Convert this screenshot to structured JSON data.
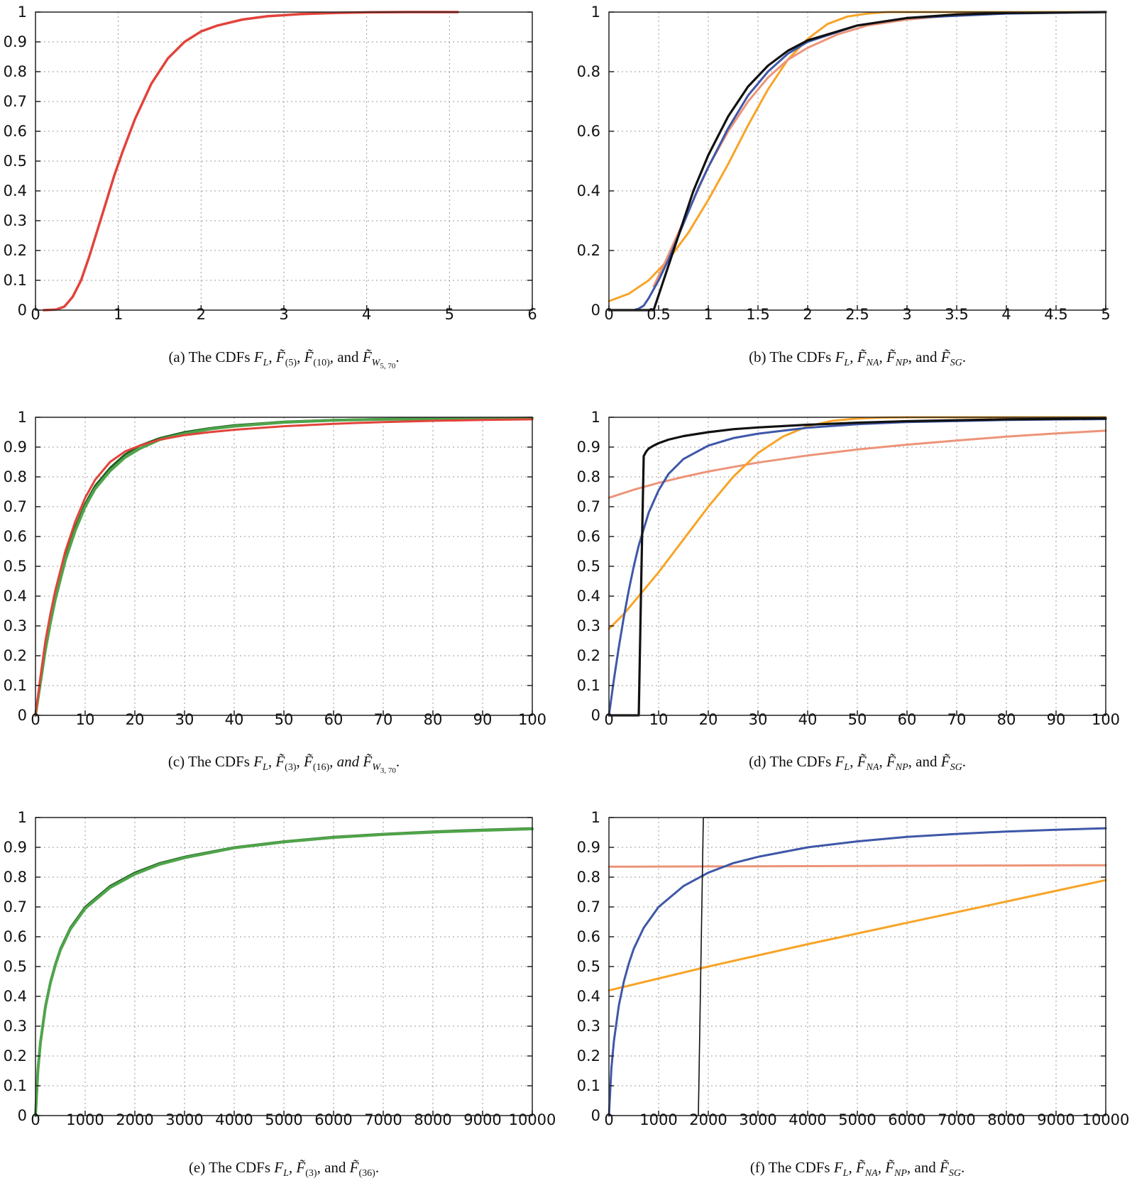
{
  "colors": {
    "red": "#e2433a",
    "blue": "#3e57a8",
    "orange": "#f7a428",
    "salmon": "#ec9479",
    "black": "#111111",
    "green": "#4fa44a",
    "dark_green": "#1f5d20"
  },
  "chart_data": [
    {
      "id": "a",
      "type": "line",
      "xlim": [
        0,
        6
      ],
      "ylim": [
        0,
        1
      ],
      "xticks": [
        "0",
        "1",
        "2",
        "3",
        "4",
        "5",
        "6"
      ],
      "yticks": [
        "0",
        "0.1",
        "0.2",
        "0.3",
        "0.4",
        "0.5",
        "0.6",
        "0.7",
        "0.8",
        "0.9",
        "1"
      ],
      "grid": true,
      "caption": {
        "lead": "(a) The CDFs",
        "tail": ", and"
      },
      "series": [
        {
          "color_key": "red",
          "width": 3.5,
          "x": [
            0.1,
            0.25,
            0.35,
            0.45,
            0.55,
            0.65,
            0.75,
            0.85,
            0.95,
            1.05,
            1.2,
            1.4,
            1.6,
            1.8,
            2.0,
            2.2,
            2.5,
            2.8,
            3.2,
            3.6,
            4.0,
            4.5,
            5.1
          ],
          "y": [
            0.0,
            0.002,
            0.012,
            0.045,
            0.1,
            0.18,
            0.27,
            0.36,
            0.45,
            0.53,
            0.64,
            0.76,
            0.845,
            0.9,
            0.935,
            0.955,
            0.975,
            0.986,
            0.993,
            0.997,
            0.999,
            1.0,
            1.0
          ]
        }
      ]
    },
    {
      "id": "b",
      "type": "line",
      "xlim": [
        0,
        5
      ],
      "ylim": [
        0,
        1
      ],
      "xticks": [
        "0",
        "0.5",
        "1",
        "1.5",
        "2",
        "2.5",
        "3",
        "3.5",
        "4",
        "4.5",
        "5"
      ],
      "yticks": [
        "0",
        "0.2",
        "0.4",
        "0.6",
        "0.8",
        "1"
      ],
      "grid": true,
      "caption": {
        "lead": "(b) The CDFs",
        "tail": ", and"
      },
      "series": [
        {
          "color_key": "orange",
          "width": 3,
          "x": [
            0,
            0.2,
            0.4,
            0.6,
            0.8,
            1.0,
            1.2,
            1.4,
            1.6,
            1.8,
            2.0,
            2.2,
            2.4,
            2.6,
            2.8,
            3.0,
            5.0
          ],
          "y": [
            0.03,
            0.055,
            0.1,
            0.17,
            0.26,
            0.37,
            0.49,
            0.62,
            0.74,
            0.84,
            0.91,
            0.96,
            0.985,
            0.995,
            1.0,
            1.0,
            1.0
          ]
        },
        {
          "color_key": "salmon",
          "width": 3,
          "x": [
            0.45,
            0.55,
            0.7,
            0.85,
            1.0,
            1.2,
            1.4,
            1.6,
            1.8,
            2.0,
            2.3,
            2.6,
            3.0,
            3.5,
            4.0,
            5.0
          ],
          "y": [
            0.08,
            0.15,
            0.26,
            0.37,
            0.48,
            0.6,
            0.7,
            0.78,
            0.84,
            0.88,
            0.925,
            0.955,
            0.975,
            0.99,
            0.996,
            1.0
          ]
        },
        {
          "color_key": "blue",
          "width": 3,
          "x": [
            0.25,
            0.3,
            0.35,
            0.4,
            0.5,
            0.6,
            0.7,
            0.8,
            0.9,
            1.0,
            1.2,
            1.4,
            1.6,
            1.8,
            2.0,
            2.5,
            3.0,
            4.0,
            5.0
          ],
          "y": [
            0.0,
            0.005,
            0.015,
            0.04,
            0.1,
            0.17,
            0.25,
            0.33,
            0.41,
            0.48,
            0.61,
            0.72,
            0.8,
            0.86,
            0.9,
            0.955,
            0.98,
            0.995,
            1.0
          ]
        },
        {
          "color_key": "black",
          "width": 3.2,
          "x": [
            0,
            0.45,
            0.48,
            0.55,
            0.65,
            0.75,
            0.85,
            1.0,
            1.2,
            1.4,
            1.6,
            1.8,
            2.0,
            2.5,
            3.0,
            3.5,
            4.0,
            5.0
          ],
          "y": [
            0.0,
            0.0,
            0.03,
            0.1,
            0.2,
            0.3,
            0.4,
            0.52,
            0.65,
            0.75,
            0.82,
            0.87,
            0.905,
            0.955,
            0.98,
            0.992,
            0.997,
            1.0
          ]
        }
      ]
    },
    {
      "id": "c",
      "type": "line",
      "xlim": [
        0,
        100
      ],
      "ylim": [
        0,
        1
      ],
      "xticks": [
        "0",
        "10",
        "20",
        "30",
        "40",
        "50",
        "60",
        "70",
        "80",
        "90",
        "100"
      ],
      "yticks": [
        "0",
        "0.1",
        "0.2",
        "0.3",
        "0.4",
        "0.5",
        "0.6",
        "0.7",
        "0.8",
        "0.9",
        "1"
      ],
      "grid": true,
      "caption": {
        "lead": "(c) The CDFs",
        "tail": ", and"
      },
      "series": [
        {
          "color_key": "dark_green",
          "width": 3,
          "x": [
            0,
            1,
            2,
            3,
            4,
            6,
            8,
            10,
            12,
            15,
            18,
            21,
            25,
            30,
            35,
            40,
            50,
            60,
            70,
            80,
            90,
            100
          ],
          "y": [
            0,
            0.12,
            0.23,
            0.32,
            0.4,
            0.53,
            0.63,
            0.71,
            0.77,
            0.83,
            0.875,
            0.905,
            0.93,
            0.95,
            0.963,
            0.973,
            0.985,
            0.991,
            0.994,
            0.996,
            0.997,
            0.998
          ]
        },
        {
          "color_key": "green",
          "width": 4,
          "x": [
            0,
            1,
            2,
            3,
            4,
            6,
            8,
            10,
            12,
            15,
            18,
            21,
            25,
            30,
            35,
            40,
            50,
            60,
            70,
            80,
            90,
            100
          ],
          "y": [
            0,
            0.11,
            0.22,
            0.31,
            0.39,
            0.52,
            0.62,
            0.7,
            0.76,
            0.82,
            0.865,
            0.895,
            0.925,
            0.945,
            0.96,
            0.97,
            0.983,
            0.99,
            0.993,
            0.995,
            0.996,
            0.997
          ]
        },
        {
          "color_key": "red",
          "width": 3,
          "x": [
            0,
            1,
            2,
            3,
            4,
            6,
            8,
            10,
            12,
            15,
            18,
            21,
            25,
            30,
            35,
            40,
            50,
            60,
            70,
            80,
            90,
            100
          ],
          "y": [
            0,
            0.13,
            0.25,
            0.34,
            0.42,
            0.55,
            0.65,
            0.73,
            0.79,
            0.85,
            0.885,
            0.905,
            0.925,
            0.94,
            0.95,
            0.958,
            0.97,
            0.978,
            0.984,
            0.988,
            0.991,
            0.993
          ]
        }
      ]
    },
    {
      "id": "d",
      "type": "line",
      "xlim": [
        0,
        100
      ],
      "ylim": [
        0,
        1
      ],
      "xticks": [
        "0",
        "10",
        "20",
        "30",
        "40",
        "50",
        "60",
        "70",
        "80",
        "90",
        "100"
      ],
      "yticks": [
        "0",
        "0.1",
        "0.2",
        "0.3",
        "0.4",
        "0.5",
        "0.6",
        "0.7",
        "0.8",
        "0.9",
        "1"
      ],
      "grid": true,
      "caption": {
        "lead": "(d) The CDFs",
        "tail": ", and"
      },
      "series": [
        {
          "color_key": "salmon",
          "width": 3,
          "x": [
            0,
            5,
            10,
            15,
            20,
            30,
            40,
            50,
            60,
            70,
            80,
            90,
            100
          ],
          "y": [
            0.73,
            0.757,
            0.78,
            0.8,
            0.818,
            0.848,
            0.872,
            0.892,
            0.908,
            0.922,
            0.935,
            0.946,
            0.955
          ]
        },
        {
          "color_key": "orange",
          "width": 3,
          "x": [
            0,
            3,
            6,
            10,
            15,
            20,
            25,
            30,
            35,
            40,
            45,
            50,
            55,
            60,
            100
          ],
          "y": [
            0.29,
            0.34,
            0.4,
            0.48,
            0.59,
            0.7,
            0.8,
            0.88,
            0.935,
            0.97,
            0.988,
            0.996,
            0.999,
            1.0,
            1.0
          ]
        },
        {
          "color_key": "blue",
          "width": 3,
          "x": [
            0,
            1,
            2,
            3,
            4,
            5,
            6,
            8,
            10,
            12,
            15,
            20,
            25,
            30,
            40,
            50,
            60,
            80,
            100
          ],
          "y": [
            0,
            0.12,
            0.23,
            0.33,
            0.42,
            0.5,
            0.57,
            0.68,
            0.755,
            0.81,
            0.86,
            0.905,
            0.93,
            0.945,
            0.965,
            0.977,
            0.984,
            0.991,
            0.994
          ]
        },
        {
          "color_key": "black",
          "width": 3.2,
          "x": [
            0,
            6,
            6.5,
            7,
            7.5,
            8,
            9,
            10,
            12,
            15,
            20,
            25,
            30,
            40,
            50,
            60,
            80,
            100
          ],
          "y": [
            0,
            0,
            0.45,
            0.87,
            0.885,
            0.895,
            0.905,
            0.913,
            0.925,
            0.937,
            0.95,
            0.96,
            0.966,
            0.975,
            0.982,
            0.987,
            0.993,
            0.996
          ]
        }
      ]
    },
    {
      "id": "e",
      "type": "line",
      "xlim": [
        0,
        10000
      ],
      "ylim": [
        0,
        1
      ],
      "xticks": [
        "0",
        "1000",
        "2000",
        "3000",
        "4000",
        "5000",
        "6000",
        "7000",
        "8000",
        "9000",
        "10000"
      ],
      "yticks": [
        "0",
        "0.1",
        "0.2",
        "0.3",
        "0.4",
        "0.5",
        "0.6",
        "0.7",
        "0.8",
        "0.9",
        "1"
      ],
      "grid": true,
      "caption": {
        "lead": "(e) The CDFs",
        "tail": ", and"
      },
      "series": [
        {
          "color_key": "dark_green",
          "width": 3,
          "x": [
            0,
            50,
            100,
            200,
            300,
            400,
            500,
            700,
            1000,
            1500,
            2000,
            2500,
            3000,
            4000,
            5000,
            6000,
            7000,
            8000,
            9000,
            10000
          ],
          "y": [
            0,
            0.16,
            0.25,
            0.37,
            0.45,
            0.51,
            0.56,
            0.63,
            0.7,
            0.77,
            0.815,
            0.847,
            0.868,
            0.9,
            0.92,
            0.935,
            0.945,
            0.953,
            0.959,
            0.964
          ]
        },
        {
          "color_key": "green",
          "width": 4,
          "x": [
            0,
            50,
            100,
            200,
            300,
            400,
            500,
            700,
            1000,
            1500,
            2000,
            2500,
            3000,
            4000,
            5000,
            6000,
            7000,
            8000,
            9000,
            10000
          ],
          "y": [
            0,
            0.155,
            0.245,
            0.365,
            0.445,
            0.505,
            0.555,
            0.625,
            0.695,
            0.765,
            0.81,
            0.843,
            0.865,
            0.898,
            0.918,
            0.933,
            0.943,
            0.951,
            0.957,
            0.962
          ]
        }
      ]
    },
    {
      "id": "f",
      "type": "line",
      "xlim": [
        0,
        10000
      ],
      "ylim": [
        0,
        1
      ],
      "xticks": [
        "0",
        "1000",
        "2000",
        "3000",
        "4000",
        "5000",
        "6000",
        "7000",
        "8000",
        "9000",
        "10000"
      ],
      "yticks": [
        "0",
        "0.1",
        "0.2",
        "0.3",
        "0.4",
        "0.5",
        "0.6",
        "0.7",
        "0.8",
        "0.9",
        "1"
      ],
      "grid": true,
      "caption": {
        "lead": "(f) The CDFs",
        "tail": ", and"
      },
      "series": [
        {
          "color_key": "salmon",
          "width": 3,
          "x": [
            0,
            2000,
            4000,
            6000,
            8000,
            10000
          ],
          "y": [
            0.835,
            0.836,
            0.837,
            0.838,
            0.839,
            0.84
          ]
        },
        {
          "color_key": "orange",
          "width": 3,
          "x": [
            0,
            2000,
            4000,
            6000,
            8000,
            10000
          ],
          "y": [
            0.42,
            0.5,
            0.575,
            0.647,
            0.718,
            0.79
          ]
        },
        {
          "color_key": "blue",
          "width": 3,
          "x": [
            0,
            50,
            100,
            200,
            300,
            400,
            500,
            700,
            1000,
            1500,
            2000,
            2500,
            3000,
            4000,
            5000,
            6000,
            7000,
            8000,
            9000,
            10000
          ],
          "y": [
            0,
            0.16,
            0.25,
            0.37,
            0.45,
            0.51,
            0.56,
            0.63,
            0.7,
            0.77,
            0.815,
            0.847,
            0.868,
            0.9,
            0.92,
            0.935,
            0.945,
            0.953,
            0.959,
            0.964
          ]
        },
        {
          "color_key": "black",
          "width": 1.6,
          "x": [
            1800,
            1900,
            2000,
            10000
          ],
          "y": [
            0,
            1,
            1,
            1
          ]
        }
      ]
    }
  ]
}
